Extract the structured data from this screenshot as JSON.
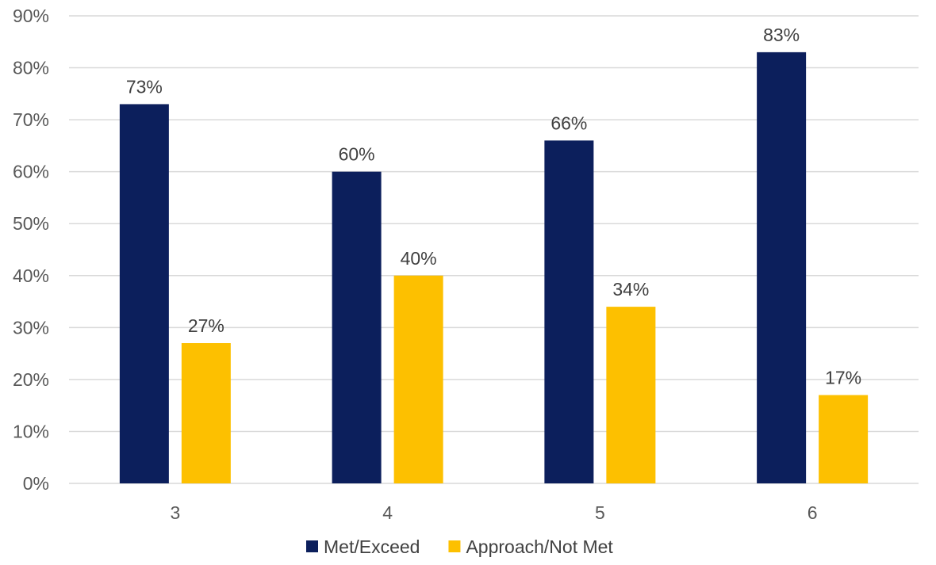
{
  "chart_data": {
    "type": "bar",
    "categories": [
      "3",
      "4",
      "5",
      "6"
    ],
    "series": [
      {
        "name": "Met/Exceed",
        "values": [
          73,
          60,
          66,
          83
        ],
        "color": "#0c1f5c"
      },
      {
        "name": "Approach/Not Met",
        "values": [
          27,
          40,
          34,
          17
        ],
        "color": "#fdc000"
      }
    ],
    "data_labels": [
      [
        "73%",
        "60%",
        "66%",
        "83%"
      ],
      [
        "27%",
        "40%",
        "34%",
        "17%"
      ]
    ],
    "y_tick_labels": [
      "0%",
      "10%",
      "20%",
      "30%",
      "40%",
      "50%",
      "60%",
      "70%",
      "80%",
      "90%"
    ],
    "ylim": [
      0,
      90
    ],
    "y_step": 10,
    "grid": true,
    "legend_position": "bottom",
    "title": "",
    "xlabel": "",
    "ylabel": ""
  }
}
